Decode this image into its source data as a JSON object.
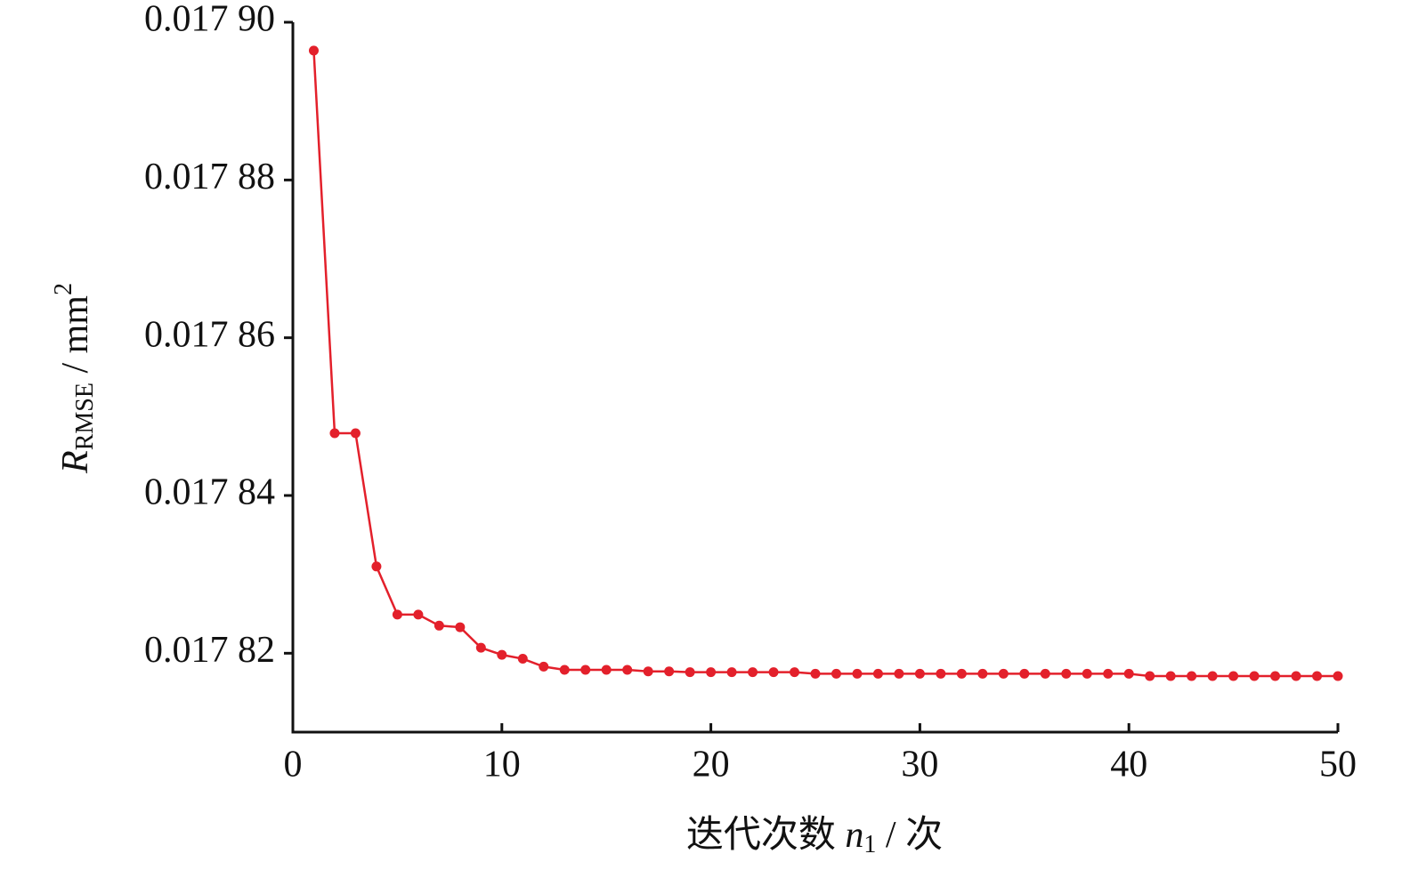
{
  "chart_data": {
    "type": "line",
    "x_label": {
      "text": "迭代次数 ",
      "symbol": "n",
      "subscript": "1",
      "unit": " / 次"
    },
    "y_label": {
      "symbol": "R",
      "subscript": "RMSE",
      "unit": " / mm",
      "superscript": "2"
    },
    "x": [
      1,
      2,
      3,
      4,
      5,
      6,
      7,
      8,
      9,
      10,
      11,
      12,
      13,
      14,
      15,
      16,
      17,
      18,
      19,
      20,
      21,
      22,
      23,
      24,
      25,
      26,
      27,
      28,
      29,
      30,
      31,
      32,
      33,
      34,
      35,
      36,
      37,
      38,
      39,
      40,
      41,
      42,
      43,
      44,
      45,
      46,
      47,
      48,
      49,
      50
    ],
    "values": [
      0.0178964,
      0.0178479,
      0.0178479,
      0.017831,
      0.0178249,
      0.0178249,
      0.0178235,
      0.0178233,
      0.0178207,
      0.0178198,
      0.0178193,
      0.0178183,
      0.0178179,
      0.0178179,
      0.0178179,
      0.0178179,
      0.0178177,
      0.0178177,
      0.0178176,
      0.0178176,
      0.0178176,
      0.0178176,
      0.0178176,
      0.0178176,
      0.0178174,
      0.0178174,
      0.0178174,
      0.0178174,
      0.0178174,
      0.0178174,
      0.0178174,
      0.0178174,
      0.0178174,
      0.0178174,
      0.0178174,
      0.0178174,
      0.0178174,
      0.0178174,
      0.0178174,
      0.0178174,
      0.0178171,
      0.0178171,
      0.0178171,
      0.0178171,
      0.0178171,
      0.0178171,
      0.0178171,
      0.0178171,
      0.0178171,
      0.0178171
    ],
    "color": "#e3202b",
    "xlim": [
      0,
      50
    ],
    "xticks": [
      0,
      10,
      20,
      30,
      40,
      50
    ],
    "ylim": [
      0.01781,
      0.0179
    ],
    "yticks": [
      {
        "value": 0.01782,
        "label": "0.017 82"
      },
      {
        "value": 0.01784,
        "label": "0.017 84"
      },
      {
        "value": 0.01786,
        "label": "0.017 86"
      },
      {
        "value": 0.01788,
        "label": "0.017 88"
      },
      {
        "value": 0.0179,
        "label": "0.017 90"
      }
    ]
  }
}
